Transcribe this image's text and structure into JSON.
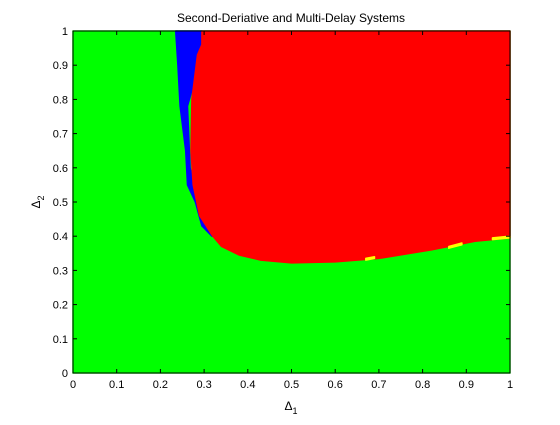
{
  "chart_data": {
    "type": "heatmap",
    "title": "Second-Deriative and Multi-Delay Systems",
    "xlabel": "Δ",
    "xlabel_sub": "1",
    "ylabel": "Δ",
    "ylabel_sub": "2",
    "xlim": [
      0,
      1
    ],
    "ylim": [
      0,
      1
    ],
    "xticks": [
      0,
      0.1,
      0.2,
      0.3,
      0.4,
      0.5,
      0.6,
      0.7,
      0.8,
      0.9,
      1
    ],
    "xtick_labels": [
      "0",
      "0.1",
      "0.2",
      "0.3",
      "0.4",
      "0.5",
      "0.6",
      "0.7",
      "0.8",
      "0.9",
      "1"
    ],
    "yticks": [
      0,
      0.1,
      0.2,
      0.3,
      0.4,
      0.5,
      0.6,
      0.7,
      0.8,
      0.9,
      1
    ],
    "ytick_labels": [
      "0",
      "0.1",
      "0.2",
      "0.3",
      "0.4",
      "0.5",
      "0.6",
      "0.7",
      "0.8",
      "0.9",
      "1"
    ],
    "grid": false,
    "colors": {
      "green": "#00ff00",
      "red": "#ff0000",
      "blue": "#0000ff",
      "yellow": "#ffff00"
    },
    "regions": [
      {
        "color": "green",
        "polygon": [
          [
            0,
            0
          ],
          [
            1,
            0
          ],
          [
            1,
            1
          ],
          [
            0,
            1
          ]
        ]
      },
      {
        "color": "blue",
        "polygon": [
          [
            0.235,
            1.0
          ],
          [
            0.295,
            1.0
          ],
          [
            0.295,
            0.93
          ],
          [
            0.262,
            0.78
          ],
          [
            0.268,
            0.6
          ],
          [
            0.285,
            0.5
          ],
          [
            0.313,
            0.44
          ],
          [
            0.325,
            0.4
          ],
          [
            0.318,
            0.4
          ],
          [
            0.295,
            0.43
          ],
          [
            0.28,
            0.5
          ],
          [
            0.262,
            0.55
          ],
          [
            0.258,
            0.65
          ],
          [
            0.245,
            0.78
          ],
          [
            0.24,
            0.9
          ]
        ]
      },
      {
        "color": "red",
        "polygon": [
          [
            0.295,
            1.0
          ],
          [
            1.0,
            1.0
          ],
          [
            1.0,
            0.395
          ],
          [
            0.92,
            0.385
          ],
          [
            0.82,
            0.36
          ],
          [
            0.7,
            0.335
          ],
          [
            0.6,
            0.325
          ],
          [
            0.5,
            0.322
          ],
          [
            0.43,
            0.33
          ],
          [
            0.38,
            0.345
          ],
          [
            0.34,
            0.37
          ],
          [
            0.32,
            0.4
          ],
          [
            0.29,
            0.46
          ],
          [
            0.275,
            0.55
          ],
          [
            0.27,
            0.65
          ],
          [
            0.272,
            0.8
          ],
          [
            0.285,
            0.93
          ],
          [
            0.295,
            0.96
          ]
        ]
      },
      {
        "color": "yellow",
        "polygon": [
          [
            0.96,
            0.39
          ],
          [
            1.0,
            0.395
          ],
          [
            1.0,
            0.4
          ],
          [
            0.96,
            0.395
          ]
        ]
      },
      {
        "color": "yellow",
        "polygon": [
          [
            0.86,
            0.365
          ],
          [
            0.89,
            0.375
          ],
          [
            0.89,
            0.38
          ],
          [
            0.86,
            0.37
          ]
        ]
      },
      {
        "color": "yellow",
        "polygon": [
          [
            0.67,
            0.33
          ],
          [
            0.69,
            0.335
          ],
          [
            0.69,
            0.34
          ],
          [
            0.67,
            0.335
          ]
        ]
      }
    ]
  }
}
